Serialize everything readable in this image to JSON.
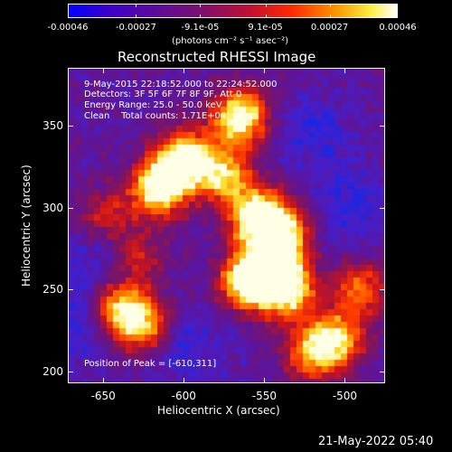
{
  "colorbar": {
    "tick_labels": [
      "-0.00046",
      "-0.00027",
      "-9.1e-05",
      "9.1e-05",
      "0.00027",
      "0.00046"
    ],
    "tick_values": [
      -0.00046,
      -0.00027,
      -9.1e-05,
      9.1e-05,
      0.00027,
      0.00046
    ],
    "range": [
      -0.00046,
      0.00046
    ],
    "units_label": "(photons cm⁻² s⁻¹ asec⁻²)",
    "colors": [
      "#0000ff",
      "#5a0aa0",
      "#7a1070",
      "#ff2a00",
      "#ff9a00",
      "#ffee40",
      "#ffffff"
    ]
  },
  "chart_data": {
    "type": "heatmap",
    "title": "Reconstructed RHESSI Image",
    "xlabel": "Heliocentric X (arcsec)",
    "ylabel": "Heliocentric Y (arcsec)",
    "xlim": [
      -672,
      -475
    ],
    "ylim": [
      193,
      385
    ],
    "x_ticks": [
      -650,
      -600,
      -550,
      -500
    ],
    "y_ticks": [
      200,
      250,
      300,
      350
    ],
    "x_tick_labels": [
      "-650",
      "-600",
      "-550",
      "-500"
    ],
    "y_tick_labels": [
      "200",
      "250",
      "300",
      "350"
    ],
    "annotations": {
      "time_range": "9-May-2015 22:18:52.000 to 22:24:52.000",
      "detectors": "Detectors: 3F 5F 6F 7F 8F 9F, Att 0",
      "energy_range": "Energy Range: 25.0 - 50.0 keV",
      "clean_counts": "Clean    Total counts: 1.71E+04",
      "peak": "Position of Peak = [-610,311]"
    },
    "peak_position": [
      -610,
      311
    ],
    "bright_regions": [
      {
        "x": -565,
        "y": 355,
        "level": 0.95
      },
      {
        "x": -600,
        "y": 330,
        "level": 0.9
      },
      {
        "x": -615,
        "y": 312,
        "level": 1.0
      },
      {
        "x": -575,
        "y": 320,
        "level": 0.7
      },
      {
        "x": -555,
        "y": 295,
        "level": 0.85
      },
      {
        "x": -540,
        "y": 285,
        "level": 0.9
      },
      {
        "x": -545,
        "y": 262,
        "level": 0.95
      },
      {
        "x": -560,
        "y": 255,
        "level": 0.9
      },
      {
        "x": -535,
        "y": 248,
        "level": 0.7
      },
      {
        "x": -640,
        "y": 238,
        "level": 0.75
      },
      {
        "x": -625,
        "y": 228,
        "level": 0.65
      },
      {
        "x": -505,
        "y": 220,
        "level": 0.7
      },
      {
        "x": -520,
        "y": 210,
        "level": 0.6
      },
      {
        "x": -490,
        "y": 250,
        "level": 0.55
      },
      {
        "x": -630,
        "y": 270,
        "level": 0.45
      },
      {
        "x": -650,
        "y": 295,
        "level": 0.4
      }
    ],
    "dark_regions": [
      {
        "x": -650,
        "y": 270,
        "level": 0.05
      },
      {
        "x": -665,
        "y": 230,
        "level": 0.05
      },
      {
        "x": -520,
        "y": 345,
        "level": 0.1
      },
      {
        "x": -495,
        "y": 300,
        "level": 0.15
      },
      {
        "x": -600,
        "y": 215,
        "level": 0.2
      }
    ]
  },
  "footer": {
    "timestamp": "21-May-2022 05:40"
  }
}
